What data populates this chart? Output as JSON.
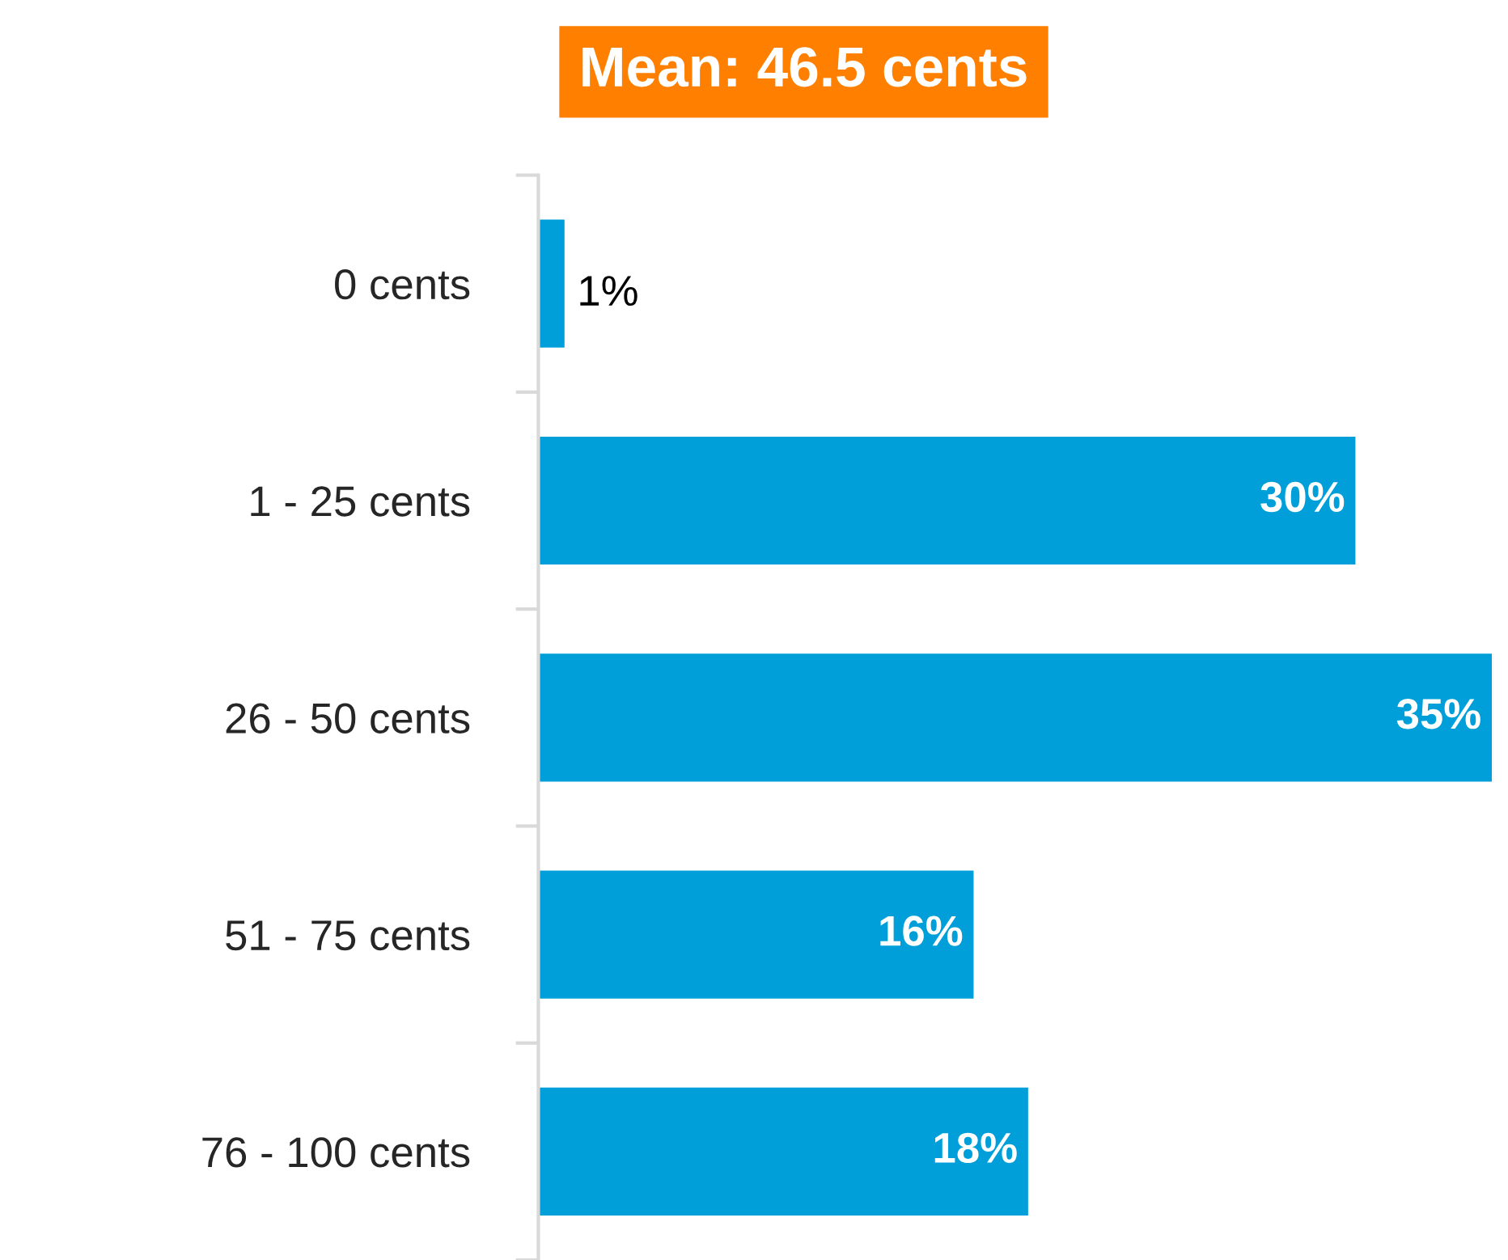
{
  "chart_data": {
    "type": "bar",
    "orientation": "horizontal",
    "title": "Mean: 46.5 cents",
    "categories": [
      "0 cents",
      "1 - 25 cents",
      "26 - 50 cents",
      "51 - 75 cents",
      "76 - 100 cents"
    ],
    "values": [
      1,
      30,
      35,
      16,
      18
    ],
    "value_labels": [
      "1%",
      "30%",
      "35%",
      "16%",
      "18%"
    ],
    "color": "#009fda",
    "grid": false,
    "legend": false
  }
}
